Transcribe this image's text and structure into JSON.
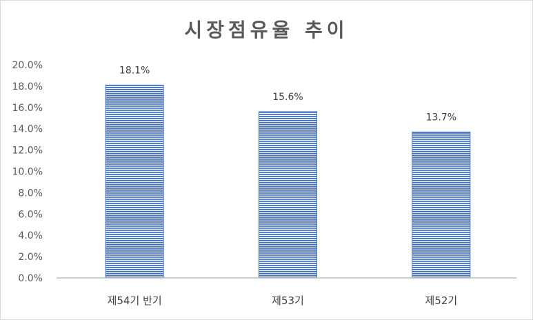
{
  "chart_data": {
    "type": "bar",
    "title": "시장점유율 추이",
    "categories": [
      "제54기 반기",
      "제53기",
      "제52기"
    ],
    "values": [
      18.1,
      15.6,
      13.7
    ],
    "value_labels": [
      "18.1%",
      "15.6%",
      "13.7%"
    ],
    "ylim": [
      0,
      20
    ],
    "yticks": [
      "0.0%",
      "2.0%",
      "4.0%",
      "6.0%",
      "8.0%",
      "10.0%",
      "12.0%",
      "14.0%",
      "16.0%",
      "18.0%",
      "20.0%"
    ],
    "grid": false,
    "bar_color": "#4472c4",
    "bar_pattern": "horizontal-stripes"
  }
}
